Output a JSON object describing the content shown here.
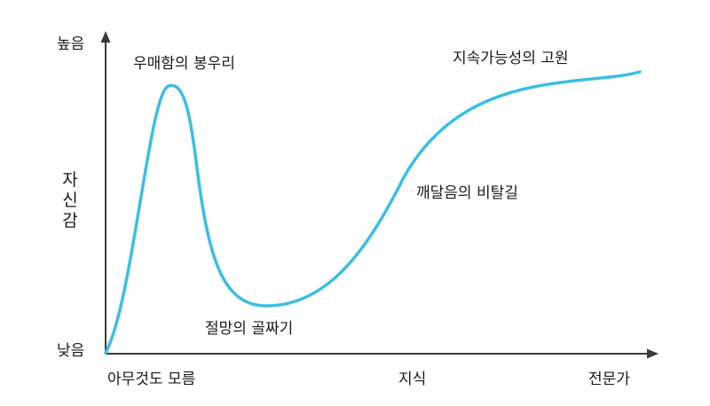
{
  "y_axis": {
    "label": "자신감",
    "high": "높음",
    "low": "낮음"
  },
  "x_axis": {
    "label": "지식",
    "start": "아무것도 모름",
    "end": "전문가"
  },
  "annotations": {
    "peak": "우매함의 봉우리",
    "valley": "절망의 골짜기",
    "slope": "깨달음의 비탈길",
    "plateau": "지속가능성의 고원"
  },
  "colors": {
    "curve": "#3bbfe0",
    "axis": "#3a3a3a",
    "text": "#1a1a1a"
  }
}
